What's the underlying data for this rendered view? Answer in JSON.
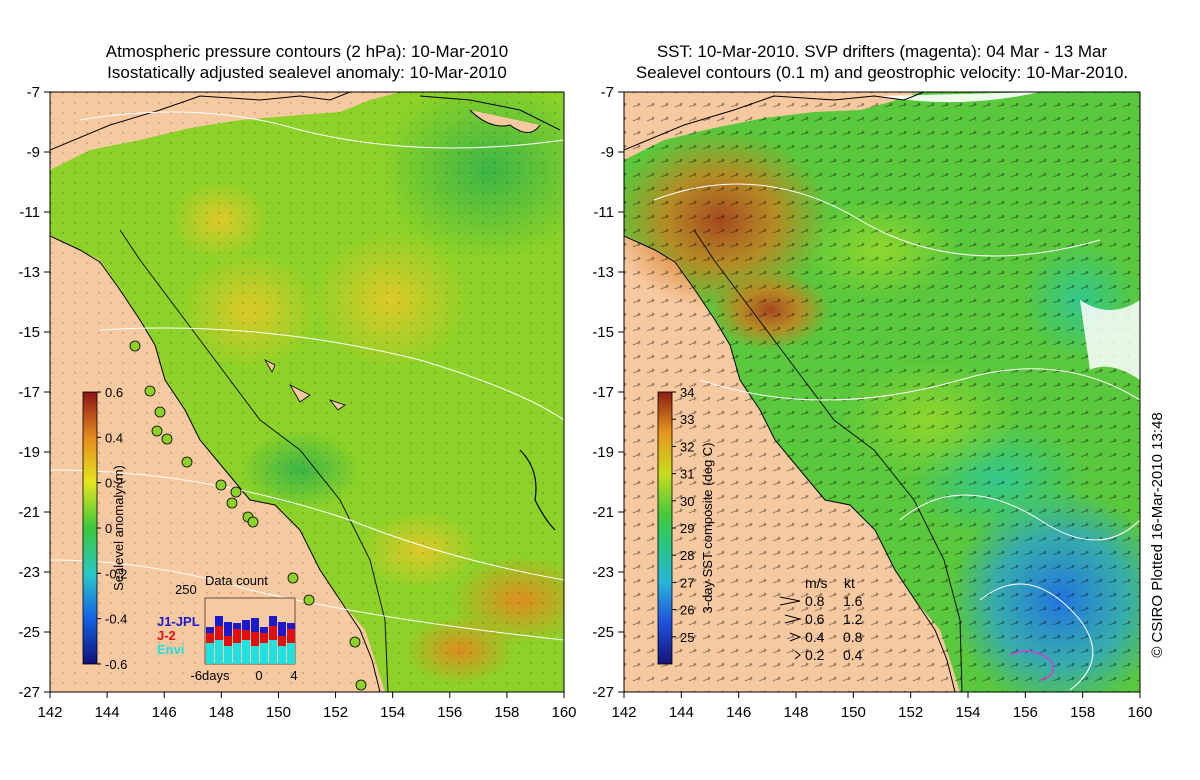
{
  "left_panel": {
    "title_line1": "Atmospheric pressure contours (2 hPa): 10-Mar-2010",
    "title_line2": "Isostatically adjusted sealevel anomaly: 10-Mar-2010",
    "colorbar": {
      "label": "Sealevel anomaly (m)",
      "ticks": [
        "0.6",
        "0.4",
        "0.2",
        "0",
        "-0.2",
        "-0.4",
        "-0.6"
      ],
      "range": [
        -0.6,
        0.6
      ]
    },
    "inset": {
      "title": "Data count",
      "ymax": "250",
      "series": [
        {
          "name": "J1-JPL",
          "color": "#1a1acc"
        },
        {
          "name": "J-2",
          "color": "#e01010"
        },
        {
          "name": "Envi",
          "color": "#20e0e0"
        }
      ],
      "xticks": [
        "-6days",
        "0",
        "4"
      ]
    }
  },
  "right_panel": {
    "title_line1": "SST: 10-Mar-2010. SVP drifters (magenta): 04 Mar - 13 Mar",
    "title_line2": "Sealevel contours (0.1 m) and geostrophic velocity: 10-Mar-2010.",
    "colorbar": {
      "label": "3-day SST composite (deg C)",
      "ticks": [
        "34",
        "33",
        "32",
        "31",
        "30",
        "29",
        "28",
        "27",
        "26",
        "25"
      ],
      "range": [
        24,
        34
      ]
    },
    "speed_legend": {
      "header_ms": "m/s",
      "header_kt": "kt",
      "rows": [
        {
          "ms": "0.8",
          "kt": "1.6"
        },
        {
          "ms": "0.6",
          "kt": "1.2"
        },
        {
          "ms": "0.4",
          "kt": "0.8"
        },
        {
          "ms": "0.2",
          "kt": "0.4"
        }
      ]
    }
  },
  "axes": {
    "x_ticks": [
      "142",
      "144",
      "146",
      "148",
      "150",
      "152",
      "154",
      "156",
      "158",
      "160"
    ],
    "y_ticks": [
      "-7",
      "-9",
      "-11",
      "-13",
      "-15",
      "-17",
      "-19",
      "-21",
      "-23",
      "-25",
      "-27"
    ]
  },
  "credit": "© CSIRO Plotted 16-Mar-2010 13:48",
  "colors": {
    "land": "#f7c9a0",
    "ocean_mid": "#7ed321",
    "sst_warm": "#b5502a"
  }
}
